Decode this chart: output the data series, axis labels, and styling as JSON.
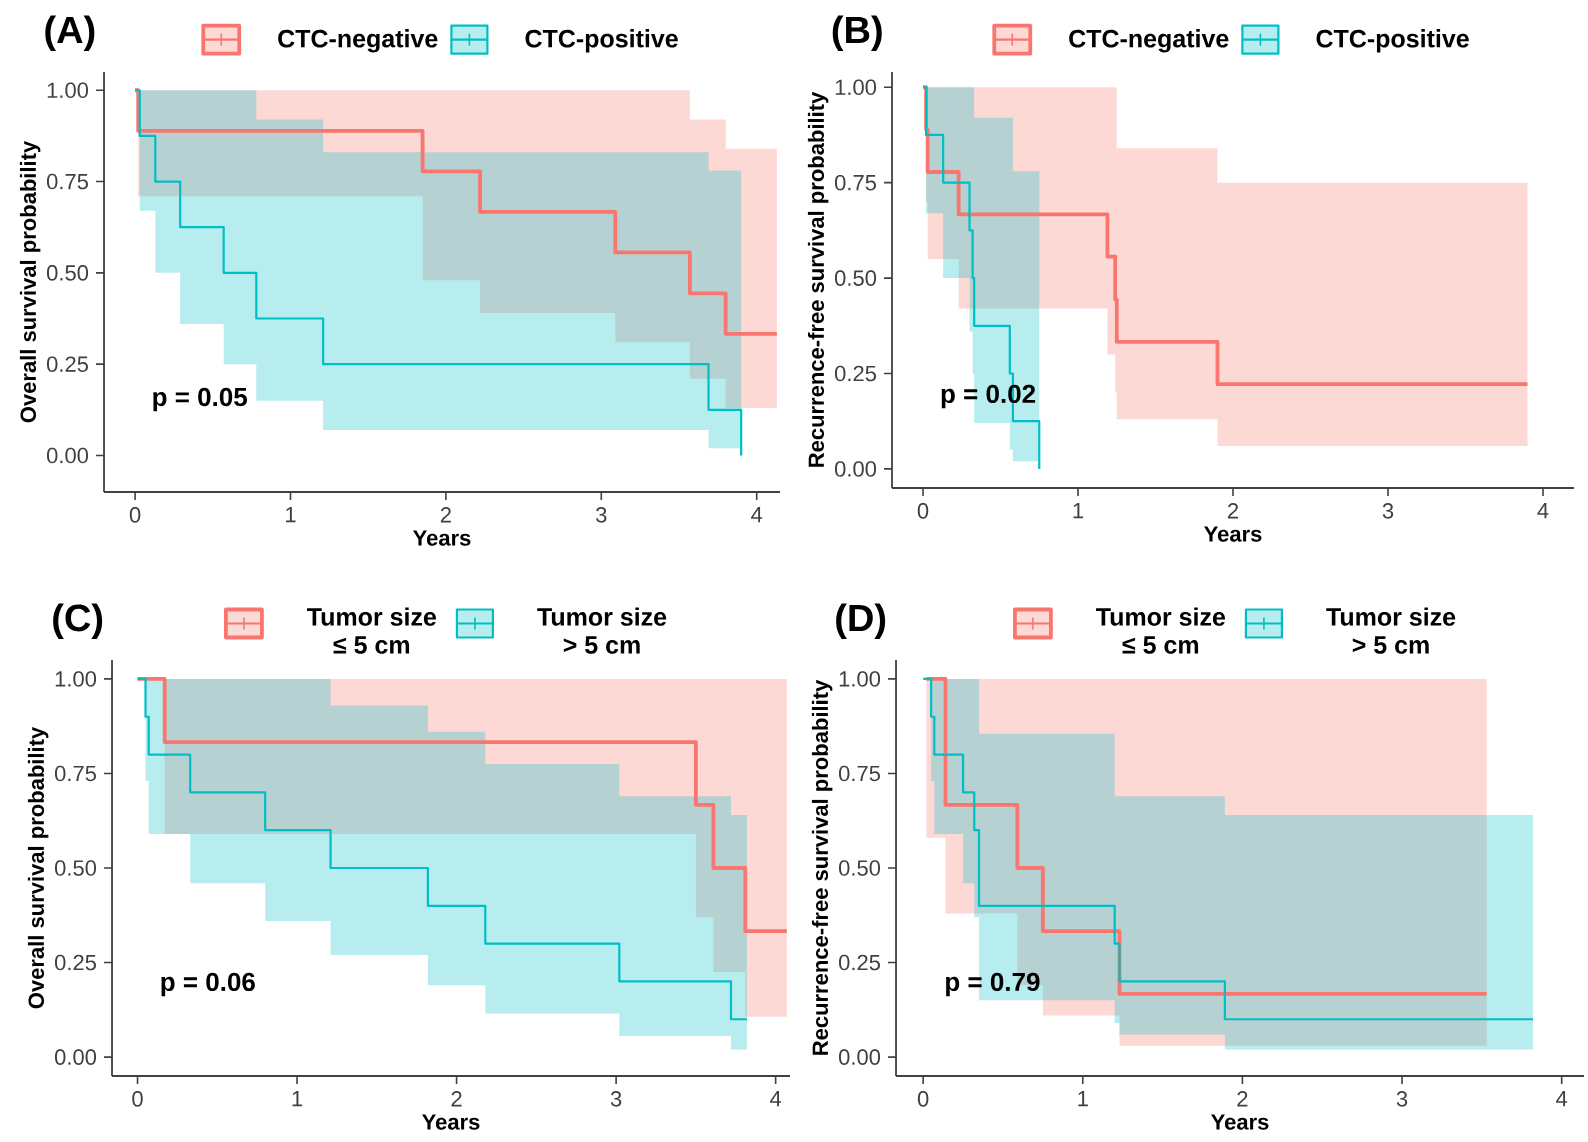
{
  "chart_data": [
    {
      "type": "step",
      "title": "(A)",
      "xlabel": "Years",
      "ylabel": "Overall survival probability",
      "legend": "top",
      "annotations": [
        "p = 0.05"
      ],
      "xlim": [
        -0.2,
        4.15
      ],
      "ylim": [
        -0.1,
        1.05
      ],
      "xticks": [
        0,
        1,
        2,
        3,
        4
      ],
      "yticks": [
        {
          "value": 0,
          "label": "0.00"
        },
        {
          "value": 0.25,
          "label": "0.25"
        },
        {
          "value": 0.5,
          "label": "0.50"
        },
        {
          "value": 0.75,
          "label": "0.75"
        },
        {
          "value": 1,
          "label": "1.00"
        }
      ],
      "series": [
        {
          "name": "CTC-negative",
          "color": "#f8766d",
          "x": [
            0,
            0.02,
            1.85,
            2.22,
            3.09,
            3.57,
            3.8,
            4.13
          ],
          "values": [
            1,
            0.889,
            0.778,
            0.667,
            0.556,
            0.444,
            0.333,
            0.333
          ],
          "lower": [
            1,
            0.71,
            0.48,
            0.39,
            0.31,
            0.21,
            0.13,
            0.13
          ],
          "upper": [
            1,
            1,
            1,
            1,
            1,
            0.92,
            0.84,
            0.84
          ]
        },
        {
          "name": "CTC-positive",
          "color": "#00bfc4",
          "x": [
            0,
            0.03,
            0.13,
            0.29,
            0.57,
            0.78,
            1.21,
            3.69,
            3.9
          ],
          "values": [
            1,
            0.875,
            0.75,
            0.625,
            0.5,
            0.375,
            0.25,
            0.125,
            0
          ],
          "lower": [
            1,
            0.67,
            0.5,
            0.36,
            0.25,
            0.15,
            0.07,
            0.02,
            0
          ],
          "upper": [
            1,
            1,
            1,
            1,
            1,
            0.92,
            0.83,
            0.78,
            0
          ]
        }
      ]
    },
    {
      "type": "step",
      "title": "(B)",
      "xlabel": "Years",
      "ylabel": "Recurrence-free survival probability",
      "legend": "top",
      "annotations": [
        "p = 0.02"
      ],
      "xlim": [
        -0.2,
        4.2
      ],
      "ylim": [
        -0.05,
        1.04
      ],
      "xticks": [
        0,
        1,
        2,
        3,
        4
      ],
      "yticks": [
        {
          "value": 0,
          "label": "0.00"
        },
        {
          "value": 0.25,
          "label": "0.25"
        },
        {
          "value": 0.5,
          "label": "0.50"
        },
        {
          "value": 0.75,
          "label": "0.75"
        },
        {
          "value": 1,
          "label": "1.00"
        }
      ],
      "series": [
        {
          "name": "CTC-negative",
          "color": "#f8766d",
          "x": [
            0,
            0.02,
            0.03,
            0.23,
            1.19,
            1.24,
            1.25,
            1.9,
            3.9
          ],
          "values": [
            1,
            0.889,
            0.778,
            0.667,
            0.556,
            0.444,
            0.333,
            0.222,
            0.222
          ],
          "lower": [
            1,
            0.7,
            0.55,
            0.42,
            0.3,
            0.2,
            0.13,
            0.06,
            0.06
          ],
          "upper": [
            1,
            1,
            1,
            1,
            1,
            1,
            0.84,
            0.75,
            0.75
          ]
        },
        {
          "name": "CTC-positive",
          "color": "#00bfc4",
          "x": [
            0,
            0.02,
            0.13,
            0.3,
            0.32,
            0.33,
            0.56,
            0.58,
            0.75
          ],
          "values": [
            1,
            0.875,
            0.75,
            0.625,
            0.5,
            0.375,
            0.25,
            0.125,
            0
          ],
          "lower": [
            1,
            0.67,
            0.5,
            0.36,
            0.25,
            0.12,
            0.05,
            0.02,
            0
          ],
          "upper": [
            1,
            1,
            1,
            1,
            1,
            0.92,
            0.92,
            0.78,
            0
          ]
        }
      ]
    },
    {
      "type": "step",
      "title": "(C)",
      "xlabel": "Years",
      "ylabel": "Overall survival probability",
      "legend": "top",
      "annotations": [
        "p = 0.06"
      ],
      "xlim": [
        -0.16,
        4.09
      ],
      "ylim": [
        -0.05,
        1.05
      ],
      "xticks": [
        0,
        1,
        2,
        3,
        4
      ],
      "yticks": [
        {
          "value": 0,
          "label": "0.00"
        },
        {
          "value": 0.25,
          "label": "0.25"
        },
        {
          "value": 0.5,
          "label": "0.50"
        },
        {
          "value": 0.75,
          "label": "0.75"
        },
        {
          "value": 1,
          "label": "1.00"
        }
      ],
      "series": [
        {
          "name": "Tumor size ≤ 5 cm",
          "color": "#f8766d",
          "x": [
            0,
            0.17,
            3.5,
            3.61,
            3.81,
            4.07
          ],
          "values": [
            1,
            0.833,
            0.667,
            0.5,
            0.333,
            0.333
          ],
          "lower": [
            1,
            0.59,
            0.37,
            0.225,
            0.107,
            0.107
          ],
          "upper": [
            1,
            1,
            1,
            1,
            1,
            1
          ]
        },
        {
          "name": "Tumor size > 5 cm",
          "color": "#00bfc4",
          "x": [
            0,
            0.05,
            0.07,
            0.33,
            0.8,
            1.21,
            1.82,
            2.18,
            3.02,
            3.72,
            3.82
          ],
          "values": [
            1,
            0.9,
            0.8,
            0.7,
            0.6,
            0.5,
            0.4,
            0.3,
            0.2,
            0.1,
            0.1
          ],
          "lower": [
            1,
            0.73,
            0.59,
            0.46,
            0.36,
            0.27,
            0.19,
            0.115,
            0.056,
            0.02,
            0.02
          ],
          "upper": [
            1,
            1,
            1,
            1,
            1,
            0.93,
            0.86,
            0.775,
            0.69,
            0.64,
            0.64
          ]
        }
      ]
    },
    {
      "type": "step",
      "title": "(D)",
      "xlabel": "Years",
      "ylabel": "Recurrence-free survival probability",
      "legend": "top",
      "annotations": [
        "p = 0.79"
      ],
      "xlim": [
        -0.17,
        4.14
      ],
      "ylim": [
        -0.05,
        1.05
      ],
      "xticks": [
        0,
        1,
        2,
        3,
        4
      ],
      "yticks": [
        {
          "value": 0,
          "label": "0.00"
        },
        {
          "value": 0.25,
          "label": "0.25"
        },
        {
          "value": 0.5,
          "label": "0.50"
        },
        {
          "value": 0.75,
          "label": "0.75"
        },
        {
          "value": 1,
          "label": "1.00"
        }
      ],
      "series": [
        {
          "name": "Tumor size ≤ 5 cm",
          "color": "#f8766d",
          "x": [
            0.02,
            0.14,
            0.59,
            0.75,
            1.23,
            3.53
          ],
          "values": [
            1,
            0.667,
            0.5,
            0.333,
            0.167,
            0.167
          ],
          "lower": [
            0.58,
            0.38,
            0.19,
            0.11,
            0.03,
            0.03
          ],
          "upper": [
            1,
            1,
            1,
            1,
            1,
            1
          ]
        },
        {
          "name": "Tumor size > 5 cm",
          "color": "#00bfc4",
          "x": [
            0,
            0.05,
            0.07,
            0.25,
            0.32,
            0.35,
            1.2,
            1.23,
            1.89,
            3.82
          ],
          "values": [
            1,
            0.9,
            0.8,
            0.7,
            0.6,
            0.4,
            0.3,
            0.2,
            0.1,
            0.1
          ],
          "lower": [
            1,
            0.73,
            0.59,
            0.46,
            0.37,
            0.15,
            0.09,
            0.06,
            0.02,
            0.02
          ],
          "upper": [
            1,
            1,
            1,
            1,
            1,
            0.855,
            0.69,
            0.69,
            0.64,
            0.64
          ]
        }
      ]
    }
  ]
}
